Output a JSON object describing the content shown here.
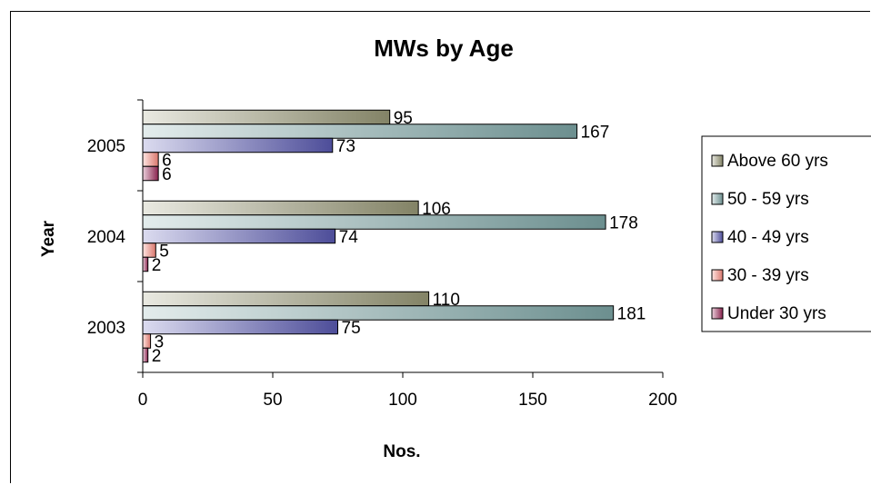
{
  "chart_data": {
    "type": "bar",
    "orientation": "horizontal",
    "title": "MWs by Age",
    "xlabel": "Nos.",
    "ylabel": "Year",
    "categories": [
      "2003",
      "2004",
      "2005"
    ],
    "xlim": [
      0,
      200
    ],
    "xticks": [
      "0",
      "50",
      "100",
      "150",
      "200"
    ],
    "grid": false,
    "legend_position": "right",
    "series": [
      {
        "name": "Above 60 yrs",
        "values": [
          110,
          106,
          95
        ],
        "color": "#9a9a78"
      },
      {
        "name": "50 - 59 yrs",
        "values": [
          181,
          178,
          167
        ],
        "color": "#7fa8a8"
      },
      {
        "name": "40 - 49 yrs",
        "values": [
          75,
          74,
          73
        ],
        "color": "#5a5ab4"
      },
      {
        "name": "30 - 39 yrs",
        "values": [
          3,
          5,
          6
        ],
        "color": "#ff8c80"
      },
      {
        "name": "Under 30 yrs",
        "values": [
          2,
          2,
          6
        ],
        "color": "#a0285a"
      }
    ]
  }
}
